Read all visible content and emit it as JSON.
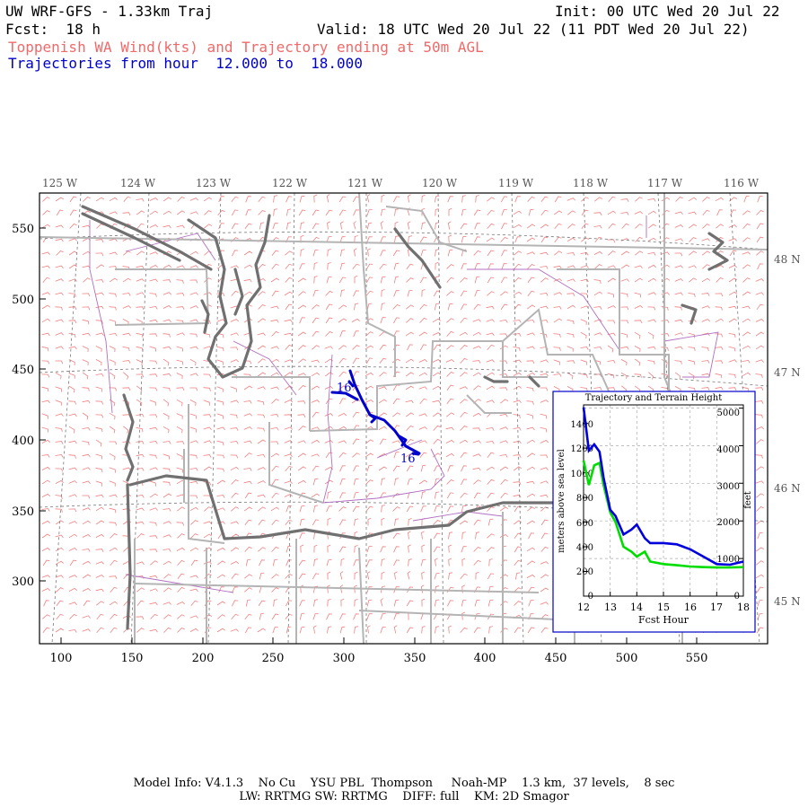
{
  "header": {
    "model_title": "UW WRF-GFS - 1.33km Traj",
    "init": "Init: 00 UTC Wed 20 Jul 22",
    "fcst": "Fcst:  18 h",
    "valid": "Valid: 18 UTC Wed 20 Jul 22 (11 PDT Wed 20 Jul 22)",
    "subtitle": "Toppenish WA Wind(kts) and Trajectory ending at 50m AGL",
    "traj_range": "Trajectories from hour  12.000 to  18.000"
  },
  "map": {
    "lon_labels": [
      "125 W",
      "124 W",
      "123 W",
      "122 W",
      "121 W",
      "120 W",
      "119 W",
      "118 W",
      "117 W",
      "116 W"
    ],
    "lat_labels": [
      "48 N",
      "47 N",
      "46 N",
      "45 N"
    ],
    "x_ticks": [
      "100",
      "150",
      "200",
      "250",
      "300",
      "350",
      "400",
      "450",
      "500",
      "550"
    ],
    "y_ticks": [
      "550",
      "500",
      "450",
      "400",
      "350",
      "300"
    ],
    "traj_label_start": "16",
    "traj_label_end": "16",
    "colors": {
      "barb": "#f08080",
      "state": "#b4b4b4",
      "coast": "#707070",
      "county": "#b070c0",
      "traj": "#0000cc"
    }
  },
  "inset": {
    "title": "Trajectory and Terrain Height",
    "xlabel": "Fcst Hour",
    "ylabel_left": "meters above sea level",
    "ylabel_right": "feet",
    "left_ticks": [
      "0",
      "200",
      "400",
      "600",
      "800",
      "1000",
      "1200",
      "1400"
    ],
    "right_ticks": [
      "0",
      "1000",
      "2000",
      "3000",
      "4000",
      "5000"
    ],
    "x_ticks": [
      "12",
      "13",
      "14",
      "15",
      "16",
      "17",
      "18"
    ]
  },
  "chart_data": {
    "type": "line",
    "title": "Trajectory and Terrain Height",
    "xlabel": "Fcst Hour",
    "ylabel": "meters above sea level",
    "xlim": [
      12,
      18
    ],
    "ylim": [
      0,
      1550
    ],
    "x": [
      12.0,
      12.2,
      12.4,
      12.6,
      12.75,
      13.0,
      13.2,
      13.5,
      13.8,
      14.0,
      14.3,
      14.5,
      15.0,
      15.5,
      16.0,
      16.5,
      17.0,
      17.5,
      18.0
    ],
    "series": [
      {
        "name": "trajectory",
        "color": "#0000dd",
        "values": [
          1530,
          1180,
          1230,
          1170,
          960,
          700,
          650,
          500,
          540,
          580,
          470,
          430,
          430,
          420,
          380,
          320,
          260,
          255,
          280
        ]
      },
      {
        "name": "terrain",
        "color": "#00dd00",
        "values": [
          1100,
          900,
          1060,
          1080,
          900,
          680,
          600,
          400,
          360,
          320,
          360,
          280,
          260,
          250,
          240,
          235,
          232,
          232,
          235
        ]
      }
    ]
  },
  "footer": {
    "line1": "Model Info: V4.1.3    No Cu    YSU PBL  Thompson     Noah-MP    1.3 km,  37 levels,    8 sec",
    "line2": "LW: RRTMG SW: RRTMG    DIFF: full    KM: 2D Smagor"
  }
}
